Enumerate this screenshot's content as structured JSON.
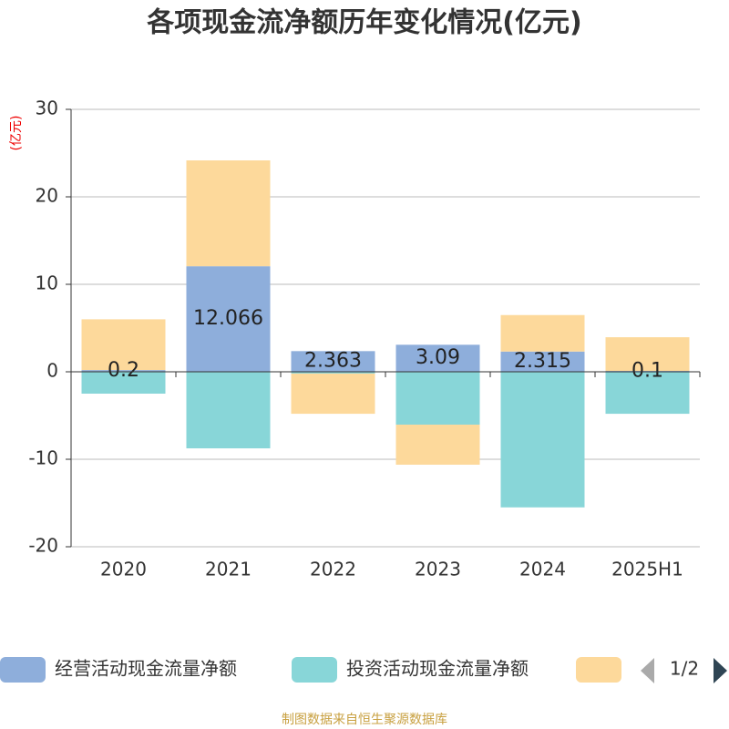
{
  "chart_data": {
    "type": "bar",
    "stacked": true,
    "title": "各项现金流净额历年变化情况(亿元)",
    "y_axis_label": "(亿元)",
    "categories": [
      "2020",
      "2021",
      "2022",
      "2023",
      "2024",
      "2025H1"
    ],
    "series": [
      {
        "name": "经营活动现金流量净额",
        "color": "#8eaedb",
        "values": [
          0.2,
          12.066,
          2.363,
          3.09,
          2.315,
          0.1
        ],
        "show_labels": true
      },
      {
        "name": "投资活动现金流量净额",
        "color": "#88d6d8",
        "values": [
          -2.5,
          -8.75,
          -0.2,
          -6.04,
          -15.5,
          -4.8
        ]
      },
      {
        "color": "#fdd99b",
        "values": [
          5.8,
          12.1,
          -4.6,
          -4.58,
          4.17,
          3.85
        ]
      }
    ],
    "ylim": [
      -20,
      30
    ],
    "yticks": [
      -20,
      -10,
      0,
      10,
      20,
      30
    ],
    "grid": true,
    "legend_page": "1/2",
    "source": "制图数据来自恒生聚源数据库"
  }
}
